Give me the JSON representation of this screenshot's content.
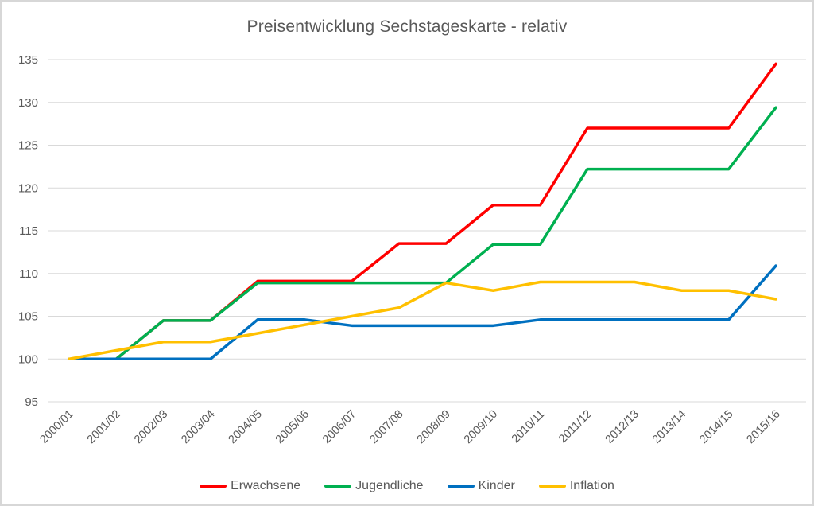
{
  "window": {
    "background_color": "#FFFFFF",
    "border_color": "#D7D7D7"
  },
  "chart_data": {
    "type": "line",
    "title": "Preisentwicklung Sechstageskarte - relativ",
    "categories": [
      "2000/01",
      "2001/02",
      "2002/03",
      "2003/04",
      "2004/05",
      "2005/06",
      "2006/07",
      "2007/08",
      "2008/09",
      "2009/10",
      "2010/11",
      "2011/12",
      "2012/13",
      "2013/14",
      "2014/15",
      "2015/16"
    ],
    "series": [
      {
        "name": "Erwachsene",
        "color": "#FF0000",
        "values": [
          100,
          100,
          104.5,
          104.5,
          109.1,
          109.1,
          109.1,
          113.5,
          113.5,
          118,
          118,
          127,
          127,
          127,
          127,
          134.5
        ]
      },
      {
        "name": "Jugendliche",
        "color": "#00B050",
        "values": [
          100,
          100,
          104.5,
          104.5,
          108.9,
          108.9,
          108.9,
          108.9,
          108.9,
          113.4,
          113.4,
          122.2,
          122.2,
          122.2,
          122.2,
          129.4
        ]
      },
      {
        "name": "Kinder",
        "color": "#0070C0",
        "values": [
          100,
          100,
          100,
          100,
          104.6,
          104.6,
          103.9,
          103.9,
          103.9,
          103.9,
          104.6,
          104.6,
          104.6,
          104.6,
          104.6,
          110.9
        ]
      },
      {
        "name": "Inflation",
        "color": "#FFC000",
        "values": [
          100,
          101,
          102,
          102,
          103,
          104,
          105,
          106,
          108.9,
          108,
          109,
          109,
          109,
          108,
          108,
          107
        ]
      }
    ],
    "ylim": [
      95,
      135
    ],
    "ytick_step": 5,
    "yticks": [
      95,
      100,
      105,
      110,
      115,
      120,
      125,
      130,
      135
    ],
    "grid": "horizontal-only",
    "grid_color": "#D9D9D9",
    "axis_text_color": "#595959",
    "x_label_rotation_deg": 45,
    "legend_position": "bottom",
    "legend_entries": [
      "Erwachsene",
      "Jugendliche",
      "Kinder",
      "Inflation"
    ]
  }
}
